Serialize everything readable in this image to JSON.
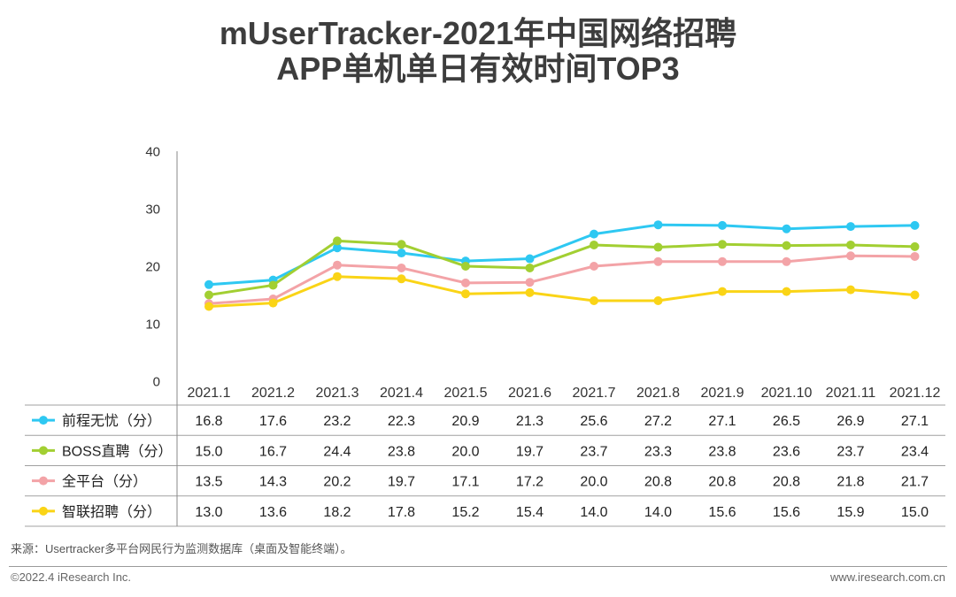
{
  "title": {
    "line1": "mUserTracker-2021年中国网络招聘",
    "line2": "APP单机单日有效时间TOP3"
  },
  "chart_data": {
    "type": "line",
    "title": "mUserTracker-2021年中国网络招聘APP单机单日有效时间TOP3",
    "categories": [
      "2021.1",
      "2021.2",
      "2021.3",
      "2021.4",
      "2021.5",
      "2021.6",
      "2021.7",
      "2021.8",
      "2021.9",
      "2021.10",
      "2021.11",
      "2021.12"
    ],
    "ylim": [
      0,
      40
    ],
    "yticks": [
      0,
      10,
      20,
      30,
      40
    ],
    "grid": false,
    "legend": "data-table-below",
    "series": [
      {
        "name": "前程无忧（分）",
        "color": "#2ec8f2",
        "values": [
          16.8,
          17.6,
          23.2,
          22.3,
          20.9,
          21.3,
          25.6,
          27.2,
          27.1,
          26.5,
          26.9,
          27.1
        ]
      },
      {
        "name": "BOSS直聘（分）",
        "color": "#a2cf32",
        "values": [
          15.0,
          16.7,
          24.4,
          23.8,
          20.0,
          19.7,
          23.7,
          23.3,
          23.8,
          23.6,
          23.7,
          23.4
        ]
      },
      {
        "name": "全平台（分）",
        "color": "#f3a3a7",
        "values": [
          13.5,
          14.3,
          20.2,
          19.7,
          17.1,
          17.2,
          20.0,
          20.8,
          20.8,
          20.8,
          21.8,
          21.7
        ]
      },
      {
        "name": "智联招聘（分）",
        "color": "#fad416",
        "values": [
          13.0,
          13.6,
          18.2,
          17.8,
          15.2,
          15.4,
          14.0,
          14.0,
          15.6,
          15.6,
          15.9,
          15.0
        ]
      }
    ]
  },
  "source": "来源：Usertracker多平台网民行为监测数据库（桌面及智能终端）。",
  "footer": {
    "copyright": "©2022.4 iResearch Inc.",
    "website": "www.iresearch.com.cn"
  }
}
